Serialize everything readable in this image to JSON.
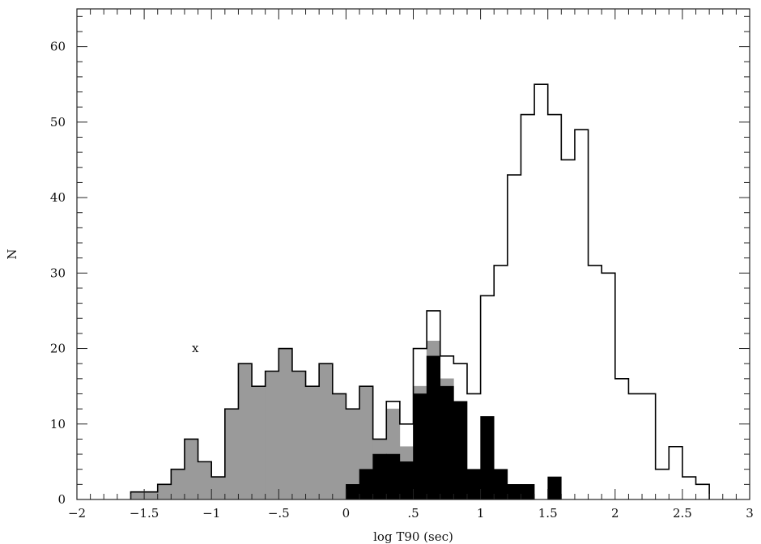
{
  "chart_data": {
    "type": "histogram",
    "xlabel": "log T90 (sec)",
    "ylabel": "N",
    "xlim": [
      -2,
      3
    ],
    "ylim": [
      0,
      65
    ],
    "x_ticks": [
      {
        "value": -2,
        "label": "−2"
      },
      {
        "value": -1.5,
        "label": "−1.5"
      },
      {
        "value": -1,
        "label": "−1"
      },
      {
        "value": -0.5,
        "label": "−.5"
      },
      {
        "value": 0,
        "label": "0"
      },
      {
        "value": 0.5,
        "label": ".5"
      },
      {
        "value": 1,
        "label": "1"
      },
      {
        "value": 1.5,
        "label": "1.5"
      },
      {
        "value": 2,
        "label": "2"
      },
      {
        "value": 2.5,
        "label": "2.5"
      },
      {
        "value": 3,
        "label": "3"
      }
    ],
    "y_ticks": [
      {
        "value": 0,
        "label": "0"
      },
      {
        "value": 10,
        "label": "10"
      },
      {
        "value": 20,
        "label": "20"
      },
      {
        "value": 30,
        "label": "30"
      },
      {
        "value": 40,
        "label": "40"
      },
      {
        "value": 50,
        "label": "50"
      },
      {
        "value": 60,
        "label": "60"
      }
    ],
    "bin_edges": [
      -1.6,
      -1.5,
      -1.4,
      -1.3,
      -1.2,
      -1.1,
      -1.0,
      -0.9,
      -0.8,
      -0.7,
      -0.6,
      -0.5,
      -0.4,
      -0.3,
      -0.2,
      -0.1,
      0.0,
      0.1,
      0.2,
      0.3,
      0.4,
      0.5,
      0.6,
      0.7,
      0.8,
      0.9,
      1.0,
      1.1,
      1.2,
      1.3,
      1.4,
      1.5,
      1.6,
      1.7,
      1.8,
      1.9,
      2.0,
      2.1,
      2.2,
      2.3,
      2.4,
      2.5,
      2.6,
      2.7
    ],
    "series": [
      {
        "style": "outline",
        "color": "#000000",
        "values": [
          1,
          1,
          2,
          4,
          8,
          5,
          3,
          12,
          18,
          15,
          17,
          20,
          17,
          15,
          18,
          14,
          12,
          15,
          8,
          13,
          10,
          20,
          25,
          19,
          18,
          14,
          27,
          31,
          43,
          51,
          55,
          51,
          45,
          49,
          31,
          30,
          16,
          14,
          14,
          4,
          7,
          3,
          2
        ]
      },
      {
        "style": "gray",
        "color": "#9a9a9a",
        "values": [
          1,
          1,
          2,
          4,
          8,
          5,
          3,
          12,
          18,
          15,
          17,
          20,
          17,
          15,
          18,
          14,
          12,
          15,
          8,
          12,
          7,
          15,
          21,
          16,
          13,
          0,
          0,
          0,
          0,
          0,
          0,
          0,
          0,
          0,
          0,
          0,
          0,
          0,
          0,
          0,
          0,
          0,
          0
        ]
      },
      {
        "style": "black",
        "color": "#000000",
        "values": [
          0,
          0,
          0,
          0,
          0,
          0,
          0,
          0,
          0,
          0,
          0,
          0,
          0,
          0,
          0,
          0,
          2,
          4,
          6,
          6,
          5,
          14,
          19,
          15,
          13,
          4,
          11,
          4,
          2,
          2,
          0,
          3,
          0,
          0,
          0,
          0,
          0,
          0,
          0,
          0,
          0,
          0,
          0
        ]
      }
    ],
    "annotations": [
      {
        "text": "x",
        "x": -1.12,
        "y": 19.5
      }
    ]
  }
}
